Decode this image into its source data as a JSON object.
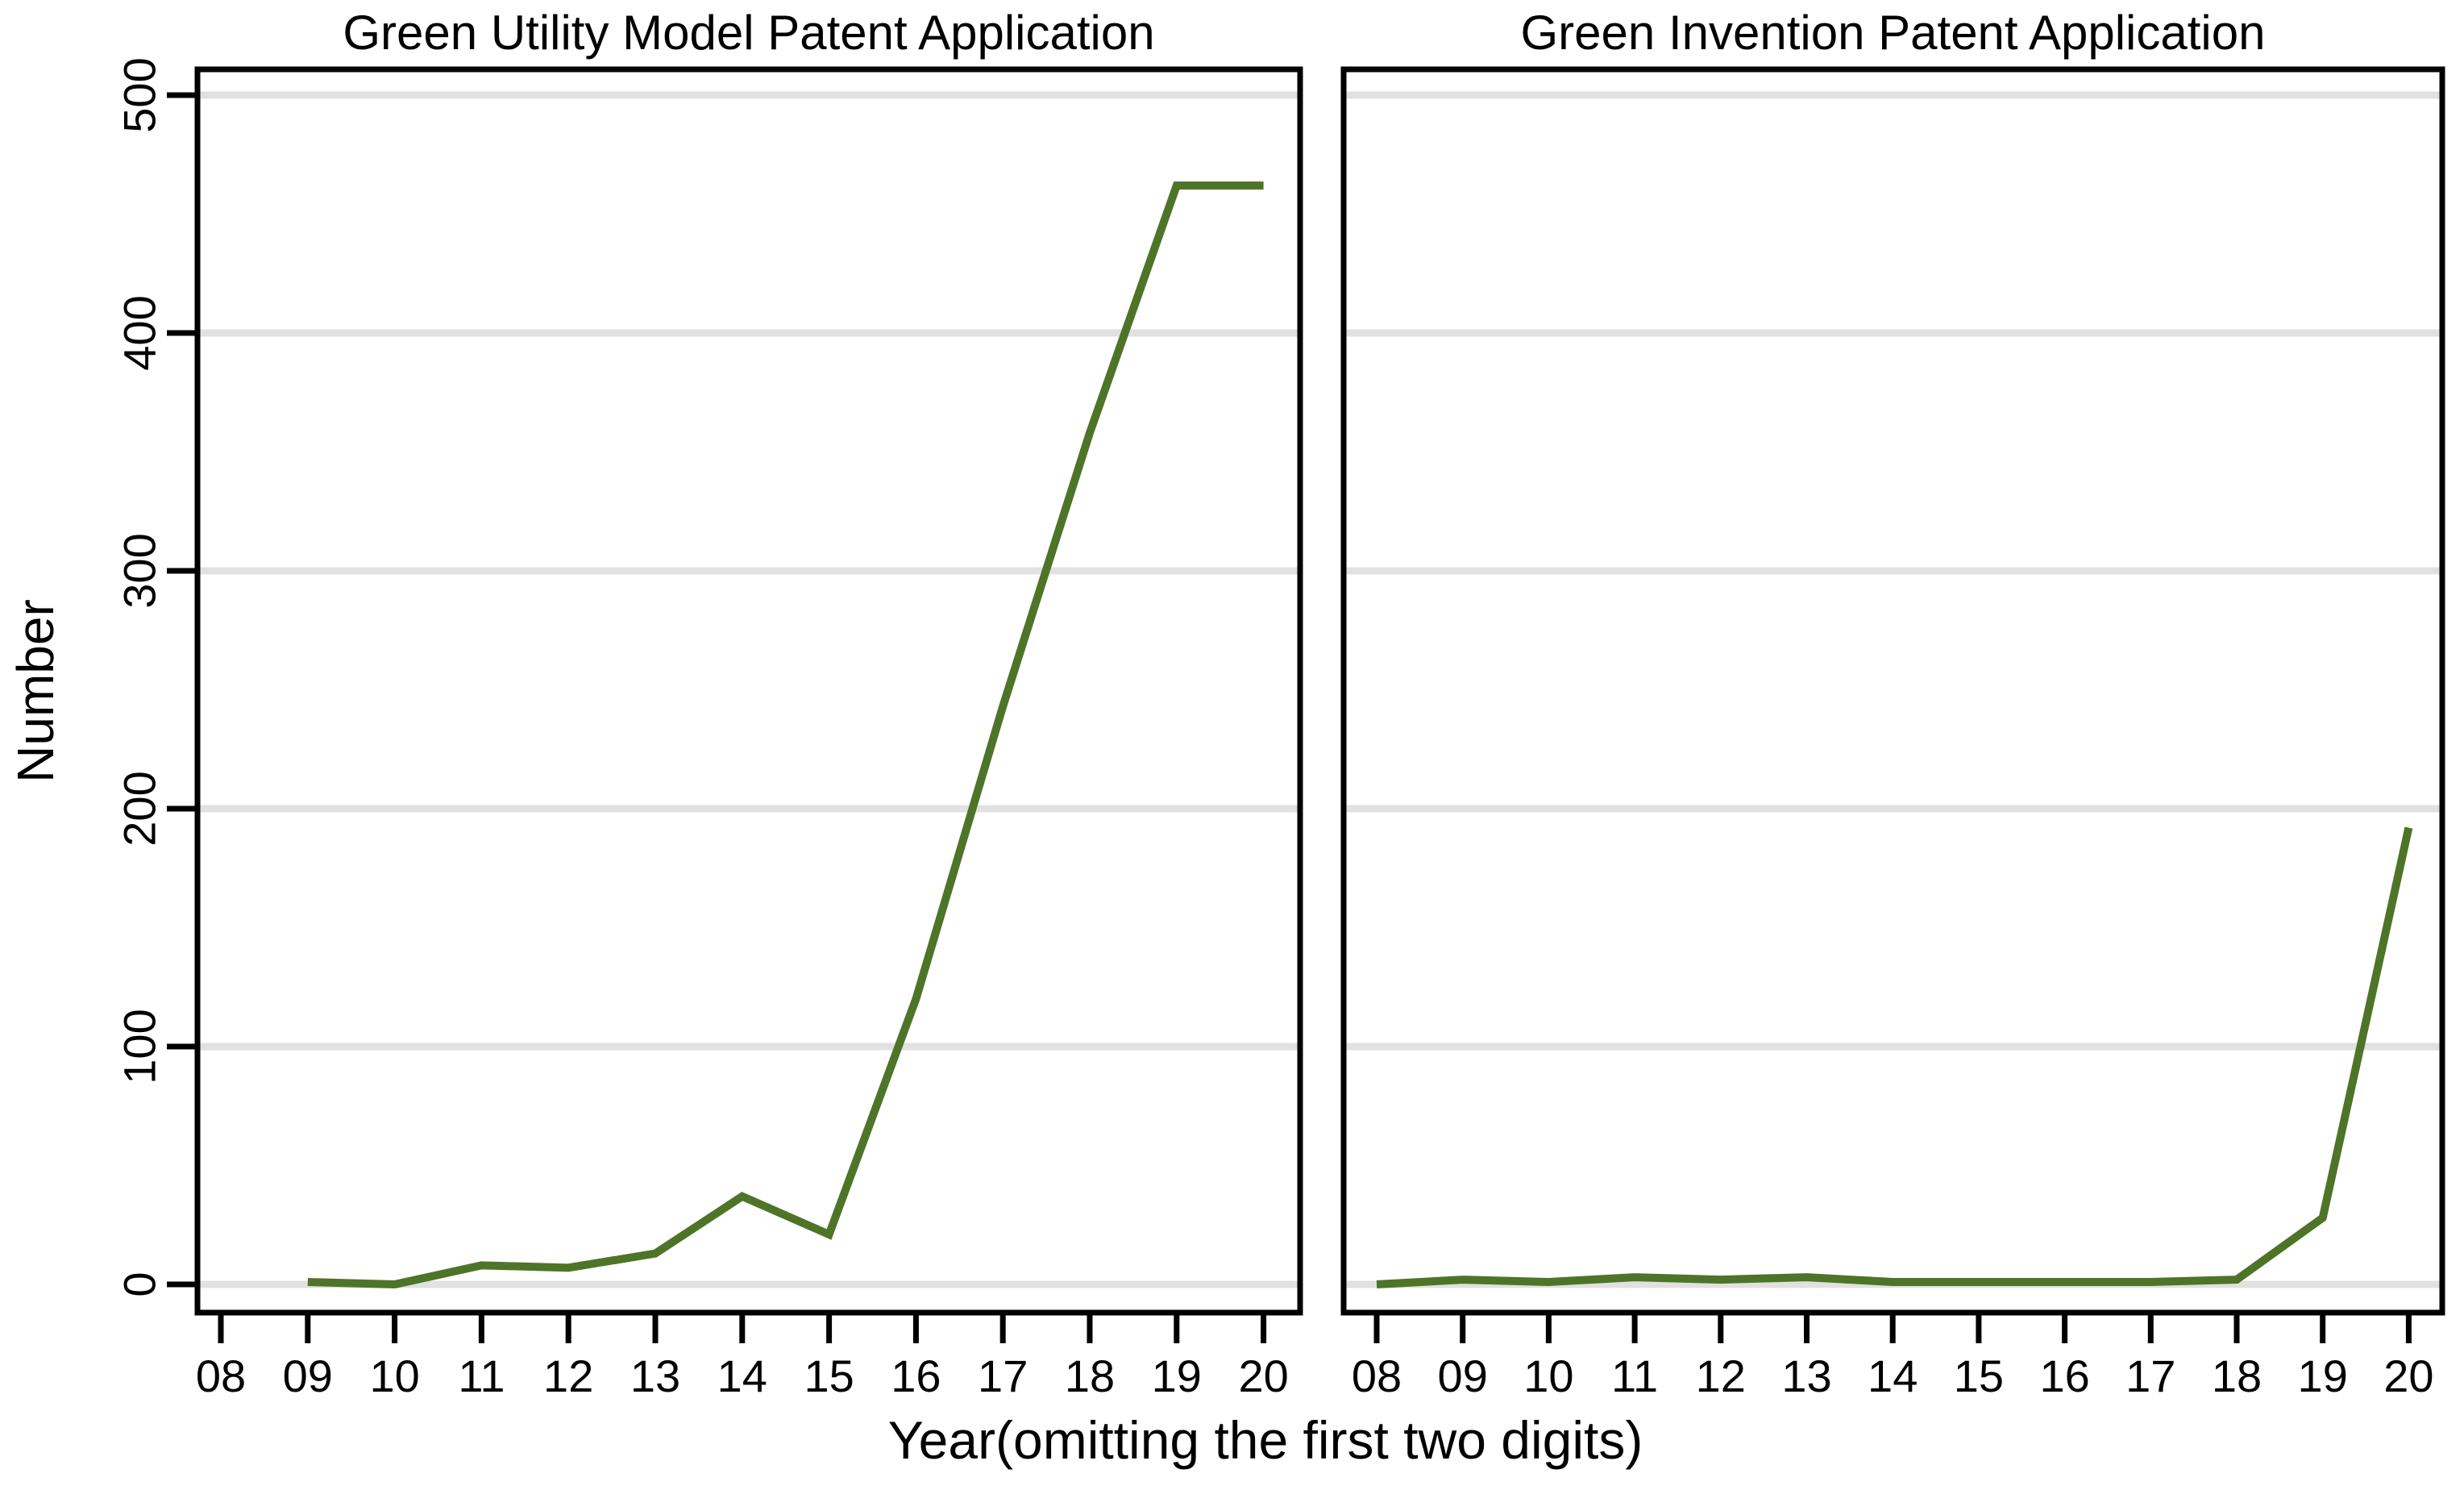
{
  "figure": {
    "x_axis_label": "Year(omitting the first two digits)",
    "y_axis_label": "Number"
  },
  "colors": {
    "line": "#4e7428",
    "grid": "#e1e1e1",
    "axis": "#000000",
    "background": "#ffffff",
    "text": "#000000"
  },
  "chart_data": [
    {
      "type": "line",
      "title": "Green Utility Model Patent Application",
      "categories": [
        "08",
        "09",
        "10",
        "11",
        "12",
        "13",
        "14",
        "15",
        "16",
        "17",
        "18",
        "19",
        "20"
      ],
      "values": [
        null,
        1,
        0,
        8,
        7,
        13,
        37,
        21,
        120,
        243,
        358,
        462,
        462
      ],
      "xlabel": "Year(omitting the first two digits)",
      "ylabel": "Number",
      "ylim": [
        0,
        500
      ],
      "yticks": [
        0,
        100,
        200,
        300,
        400,
        500
      ],
      "grid": "horizontal",
      "legend": "none",
      "line_color": "#4e7428"
    },
    {
      "type": "line",
      "title": "Green Invention Patent Application",
      "categories": [
        "08",
        "09",
        "10",
        "11",
        "12",
        "13",
        "14",
        "15",
        "16",
        "17",
        "18",
        "19",
        "20"
      ],
      "values": [
        0,
        2,
        1,
        3,
        2,
        3,
        1,
        1,
        1,
        1,
        2,
        28,
        192
      ],
      "xlabel": "Year(omitting the first two digits)",
      "ylabel": "",
      "ylim": [
        0,
        500
      ],
      "yticks": [
        0,
        100,
        200,
        300,
        400,
        500
      ],
      "grid": "horizontal",
      "legend": "none",
      "line_color": "#4e7428"
    }
  ]
}
